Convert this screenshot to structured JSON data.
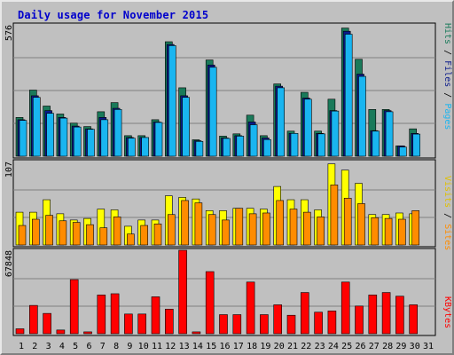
{
  "title": "Daily usage for November 2015",
  "chart_data": [
    {
      "type": "bar",
      "categories": [
        "1",
        "2",
        "3",
        "4",
        "5",
        "6",
        "7",
        "8",
        "9",
        "10",
        "11",
        "12",
        "13",
        "14",
        "15",
        "16",
        "17",
        "18",
        "19",
        "20",
        "21",
        "22",
        "23",
        "24",
        "25",
        "26",
        "27",
        "28",
        "29",
        "30",
        "31"
      ],
      "series": [
        {
          "name": "Hits",
          "color": "#1a7a5a",
          "values": [
            170,
            290,
            220,
            185,
            145,
            130,
            195,
            235,
            90,
            90,
            160,
            502,
            300,
            72,
            422,
            88,
            98,
            180,
            90,
            317,
            110,
            280,
            110,
            250,
            562,
            425,
            205,
            205,
            45,
            120,
            0
          ]
        },
        {
          "name": "Files",
          "color": "#0a1a8a",
          "values": [
            160,
            265,
            200,
            170,
            132,
            120,
            170,
            210,
            82,
            82,
            150,
            490,
            265,
            68,
            400,
            80,
            90,
            150,
            80,
            307,
            100,
            255,
            100,
            200,
            548,
            360,
            112,
            200,
            45,
            100,
            0
          ]
        },
        {
          "name": "Pages",
          "color": "#19b5f0",
          "values": [
            157,
            258,
            188,
            167,
            128,
            118,
            160,
            205,
            79,
            82,
            148,
            485,
            258,
            65,
            390,
            78,
            88,
            138,
            73,
            300,
            100,
            250,
            98,
            198,
            535,
            350,
            110,
            195,
            40,
            97,
            0
          ]
        }
      ],
      "ymax_label": "576",
      "right_label_parts": [
        "Pages",
        "Files",
        "Hits"
      ]
    },
    {
      "type": "bar",
      "categories": [
        "1",
        "2",
        "3",
        "4",
        "5",
        "6",
        "7",
        "8",
        "9",
        "10",
        "11",
        "12",
        "13",
        "14",
        "15",
        "16",
        "17",
        "18",
        "19",
        "20",
        "21",
        "22",
        "23",
        "24",
        "25",
        "26",
        "27",
        "28",
        "29",
        "30",
        "31"
      ],
      "series": [
        {
          "name": "Visits",
          "color": "#ffff00",
          "values": [
            42,
            42,
            58,
            40,
            32,
            34,
            46,
            45,
            24,
            32,
            32,
            63,
            61,
            59,
            44,
            44,
            47,
            47,
            46,
            75,
            58,
            58,
            45,
            104,
            96,
            79,
            39,
            39,
            41,
            40,
            0
          ]
        },
        {
          "name": "Sites",
          "color": "#ff8c00",
          "values": [
            25,
            33,
            38,
            31,
            29,
            26,
            22,
            36,
            14,
            25,
            27,
            39,
            57,
            54,
            39,
            32,
            47,
            40,
            41,
            57,
            46,
            42,
            36,
            77,
            60,
            53,
            35,
            34,
            33,
            44,
            0
          ]
        }
      ],
      "ymax_label": "107",
      "right_label_parts": [
        "Sites",
        "Visits"
      ]
    },
    {
      "type": "bar",
      "categories": [
        "1",
        "2",
        "3",
        "4",
        "5",
        "6",
        "7",
        "8",
        "9",
        "10",
        "11",
        "12",
        "13",
        "14",
        "15",
        "16",
        "17",
        "18",
        "19",
        "20",
        "21",
        "22",
        "23",
        "24",
        "25",
        "26",
        "27",
        "28",
        "29",
        "30",
        "31"
      ],
      "series": [
        {
          "name": "KBytes",
          "color": "#ff0000",
          "values": [
            4000,
            23000,
            16500,
            3000,
            44000,
            1500,
            31500,
            32500,
            16000,
            16000,
            30000,
            20000,
            67848,
            1500,
            50500,
            15500,
            15500,
            42000,
            15500,
            23500,
            15000,
            33500,
            17500,
            18500,
            42000,
            22500,
            31500,
            33500,
            30500,
            23500,
            0
          ]
        }
      ],
      "ymax_label": "67848",
      "right_label_parts": [
        "KBytes"
      ]
    }
  ],
  "weekend_days": [
    1,
    7,
    8,
    14,
    15,
    21,
    22,
    28,
    29
  ]
}
